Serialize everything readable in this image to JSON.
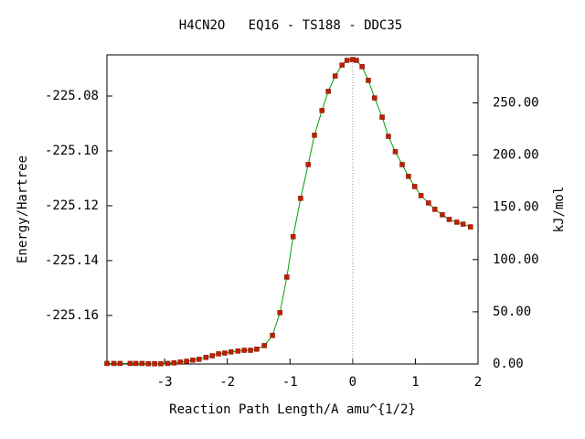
{
  "chart_data": {
    "type": "line",
    "title": "H4CN2O   EQ16 - TS188 - DDC35",
    "xlabel": "Reaction Path Length/A amu^{1/2}",
    "ylabel": "Energy/Hartree",
    "y2label": "kJ/mol",
    "x": [
      -3.92,
      -3.81,
      -3.71,
      -3.55,
      -3.46,
      -3.36,
      -3.26,
      -3.16,
      -3.06,
      -2.95,
      -2.85,
      -2.75,
      -2.65,
      -2.55,
      -2.45,
      -2.34,
      -2.24,
      -2.14,
      -2.04,
      -1.94,
      -1.83,
      -1.73,
      -1.63,
      -1.53,
      -1.41,
      -1.28,
      -1.16,
      -1.05,
      -0.95,
      -0.83,
      -0.71,
      -0.61,
      -0.49,
      -0.39,
      -0.28,
      -0.17,
      -0.09,
      0,
      0.06,
      0.15,
      0.25,
      0.35,
      0.47,
      0.57,
      0.68,
      0.79,
      0.89,
      0.99,
      1.09,
      1.21,
      1.31,
      1.43,
      1.54,
      1.66,
      1.76,
      1.88
    ],
    "values": [
      -225.1775,
      -225.1775,
      -225.1775,
      -225.1775,
      -225.1775,
      -225.1775,
      -225.1776,
      -225.1776,
      -225.1776,
      -225.1775,
      -225.1773,
      -225.177,
      -225.1767,
      -225.1763,
      -225.176,
      -225.1753,
      -225.1747,
      -225.174,
      -225.1737,
      -225.1733,
      -225.173,
      -225.1727,
      -225.1727,
      -225.1723,
      -225.171,
      -225.1673,
      -225.159,
      -225.146,
      -225.1313,
      -225.1173,
      -225.105,
      -225.0943,
      -225.0853,
      -225.0783,
      -225.0727,
      -225.0687,
      -225.067,
      -225.0667,
      -225.067,
      -225.0693,
      -225.0743,
      -225.0807,
      -225.0877,
      -225.0947,
      -225.1003,
      -225.105,
      -225.1093,
      -225.113,
      -225.1163,
      -225.119,
      -225.1213,
      -225.1233,
      -225.125,
      -225.126,
      -225.1267,
      -225.1277
    ],
    "color": "#00a000",
    "marker_color": "#c02000",
    "xlim": [
      -3.92,
      2
    ],
    "xticks": [
      -3,
      -2,
      -1,
      0,
      1,
      2
    ],
    "ylim": [
      -225.1777,
      -225.065
    ],
    "yticks": [
      -225.08,
      {
        "value": -225.1,
        "label": "-225.10"
      },
      -225.12,
      -225.14,
      -225.16
    ],
    "y2lim": [
      0,
      296
    ],
    "y2ticks": [
      {
        "value": 0,
        "label": "0.00"
      },
      {
        "value": 50,
        "label": "50.00"
      },
      {
        "value": 100,
        "label": "100.00"
      },
      {
        "value": 150,
        "label": "150.00"
      },
      {
        "value": 200,
        "label": "200.00"
      },
      {
        "value": 250,
        "label": "250.00"
      }
    ],
    "vline_x": 0
  }
}
